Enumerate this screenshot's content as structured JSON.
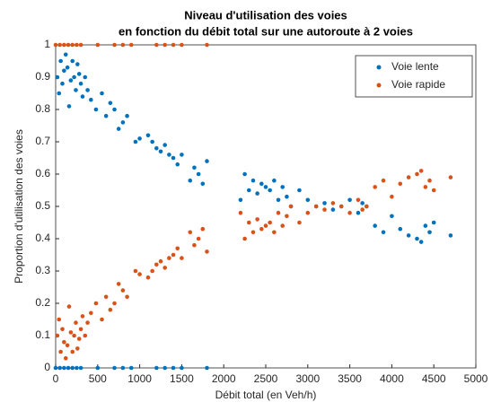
{
  "chart_data": {
    "type": "scatter",
    "title": [
      "Niveau d'utilisation des voies",
      "en fonction du débit total sur une autoroute à 2 voies"
    ],
    "xlabel": "Débit total (en Veh/h)",
    "ylabel": "Proportion d'utilisation des voies",
    "x": [
      20,
      40,
      60,
      80,
      100,
      120,
      140,
      160,
      180,
      200,
      220,
      240,
      260,
      280,
      300,
      320,
      350,
      380,
      420,
      480,
      550,
      600,
      650,
      700,
      750,
      800,
      850,
      950,
      1000,
      1100,
      1150,
      1200,
      1250,
      1300,
      1350,
      1400,
      1450,
      1500,
      1600,
      1650,
      1700,
      1750,
      1800,
      2200,
      2250,
      2300,
      2350,
      2400,
      2450,
      2500,
      2550,
      2600,
      2650,
      2700,
      2750,
      2800,
      2900,
      3000,
      3100,
      3200,
      3300,
      3400,
      3500,
      3600,
      3650,
      3700,
      3800,
      3900,
      4000,
      4100,
      4200,
      4300,
      4350,
      4400,
      4450,
      4500,
      4700,
      0,
      50,
      100,
      150,
      200,
      250,
      300,
      500,
      700,
      800,
      900,
      1200,
      1300,
      1400,
      1500,
      1800
    ],
    "series": [
      {
        "name": "Voie lente",
        "color": "#0072bd",
        "values": [
          0.9,
          0.85,
          0.95,
          0.88,
          0.92,
          0.97,
          0.93,
          0.81,
          0.89,
          0.95,
          0.9,
          0.86,
          0.94,
          0.91,
          0.88,
          0.84,
          0.9,
          0.86,
          0.83,
          0.8,
          0.85,
          0.78,
          0.82,
          0.8,
          0.74,
          0.76,
          0.78,
          0.7,
          0.71,
          0.72,
          0.7,
          0.68,
          0.67,
          0.69,
          0.66,
          0.65,
          0.63,
          0.66,
          0.58,
          0.62,
          0.6,
          0.57,
          0.64,
          0.52,
          0.6,
          0.55,
          0.58,
          0.54,
          0.57,
          0.56,
          0.55,
          0.58,
          0.52,
          0.56,
          0.53,
          0.5,
          0.55,
          0.52,
          0.5,
          0.51,
          0.49,
          0.5,
          0.52,
          0.48,
          0.51,
          0.5,
          0.44,
          0.42,
          0.47,
          0.43,
          0.41,
          0.4,
          0.39,
          0.44,
          0.42,
          0.45,
          0.41,
          0,
          0,
          0,
          0,
          0,
          0,
          0,
          0,
          0,
          0,
          0,
          0,
          0,
          0,
          0,
          0
        ]
      },
      {
        "name": "Voie rapide",
        "color": "#d95319",
        "values": [
          0.1,
          0.15,
          0.05,
          0.12,
          0.08,
          0.03,
          0.07,
          0.19,
          0.11,
          0.05,
          0.1,
          0.14,
          0.06,
          0.09,
          0.12,
          0.16,
          0.1,
          0.14,
          0.17,
          0.2,
          0.15,
          0.22,
          0.18,
          0.2,
          0.26,
          0.24,
          0.22,
          0.3,
          0.29,
          0.28,
          0.3,
          0.32,
          0.33,
          0.31,
          0.34,
          0.35,
          0.37,
          0.34,
          0.42,
          0.38,
          0.4,
          0.43,
          0.36,
          0.48,
          0.4,
          0.45,
          0.42,
          0.46,
          0.43,
          0.44,
          0.45,
          0.42,
          0.48,
          0.44,
          0.47,
          0.5,
          0.45,
          0.48,
          0.5,
          0.49,
          0.51,
          0.5,
          0.48,
          0.52,
          0.49,
          0.5,
          0.56,
          0.58,
          0.53,
          0.57,
          0.59,
          0.6,
          0.61,
          0.56,
          0.58,
          0.55,
          0.59,
          1,
          1,
          1,
          1,
          1,
          1,
          1,
          1,
          1,
          1,
          1,
          1,
          1,
          1,
          1,
          1
        ]
      }
    ],
    "xlim": [
      0,
      5000
    ],
    "xticks": [
      0,
      500,
      1000,
      1500,
      2000,
      2500,
      3000,
      3500,
      4000,
      4500,
      5000
    ],
    "ylim": [
      0,
      1
    ],
    "yticks": [
      0,
      0.1,
      0.2,
      0.3,
      0.4,
      0.5,
      0.6,
      0.7,
      0.8,
      0.9,
      1
    ],
    "legend": "top-right"
  }
}
